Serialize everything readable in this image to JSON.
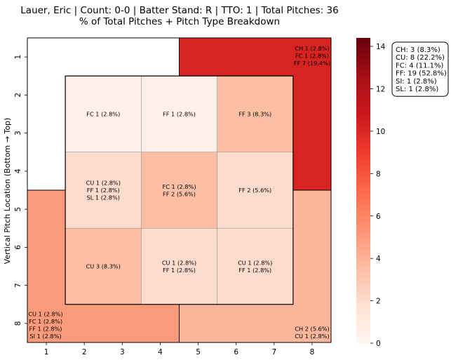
{
  "chart_data": {
    "type": "heatmap",
    "title_line1": "Lauer, Eric | Count: 0-0 | Batter Stand: R | TTO: 1 | Total Pitches: 36",
    "title_line2": "% of Total Pitches + Pitch Type Breakdown",
    "ylabel": "Vertical Pitch Location (Bottom → Top)",
    "xlabel": "",
    "xticks": [
      "1",
      "2",
      "3",
      "4",
      "5",
      "6",
      "7",
      "8"
    ],
    "yticks": [
      "1",
      "2",
      "3",
      "4",
      "5",
      "6",
      "7",
      "8"
    ],
    "colorbar": {
      "min": 0,
      "max": 14.4,
      "ticks": [
        "0",
        "2",
        "4",
        "6",
        "8",
        "10",
        "12",
        "14"
      ],
      "tick_values": [
        0,
        2,
        4,
        6,
        8,
        10,
        12,
        14
      ]
    },
    "outer_zones": [
      {
        "zone": "top-left",
        "value": 0,
        "labels": []
      },
      {
        "zone": "top-right",
        "value": 10.2,
        "labels": [
          "CH 1 (2.8%)",
          "FC 1 (2.8%)",
          "FF 7 (19.4%)"
        ]
      },
      {
        "zone": "bottom-left",
        "value": 5.0,
        "labels": [
          "CU 1 (2.8%)",
          "FC 1 (2.8%)",
          "FF 1 (2.8%)",
          "SI 1 (2.8%)"
        ]
      },
      {
        "zone": "bottom-right",
        "value": 3.8,
        "labels": [
          "CH 2 (5.6%)",
          "CU 1 (2.8%)"
        ]
      }
    ],
    "inner_cells": [
      {
        "row": 0,
        "col": 0,
        "value": 0.5,
        "labels": [
          "FC 1 (2.8%)"
        ]
      },
      {
        "row": 0,
        "col": 1,
        "value": 0.5,
        "labels": [
          "FF 1 (2.8%)"
        ]
      },
      {
        "row": 0,
        "col": 2,
        "value": 3.4,
        "labels": [
          "FF 3 (8.3%)"
        ]
      },
      {
        "row": 1,
        "col": 0,
        "value": 2.0,
        "labels": [
          "CU 1 (2.8%)",
          "FF 1 (2.8%)",
          "SL 1 (2.8%)"
        ]
      },
      {
        "row": 1,
        "col": 1,
        "value": 3.4,
        "labels": [
          "FC 1 (2.8%)",
          "FF 2 (5.6%)"
        ]
      },
      {
        "row": 1,
        "col": 2,
        "value": 2.0,
        "labels": [
          "FF 2 (5.6%)"
        ]
      },
      {
        "row": 2,
        "col": 0,
        "value": 3.4,
        "labels": [
          "CU 3 (8.3%)"
        ]
      },
      {
        "row": 2,
        "col": 1,
        "value": 2.0,
        "labels": [
          "CU 1 (2.8%)",
          "FF 1 (2.8%)"
        ]
      },
      {
        "row": 2,
        "col": 2,
        "value": 2.0,
        "labels": [
          "CU 1 (2.8%)",
          "FF 1 (2.8%)"
        ]
      }
    ],
    "legend": [
      "CH: 3 (8.3%)",
      "CU: 8 (22.2%)",
      "FC: 4 (11.1%)",
      "FF: 19 (52.8%)",
      "SI: 1 (2.8%)",
      "SL: 1 (2.8%)"
    ],
    "legend_position": "right"
  }
}
